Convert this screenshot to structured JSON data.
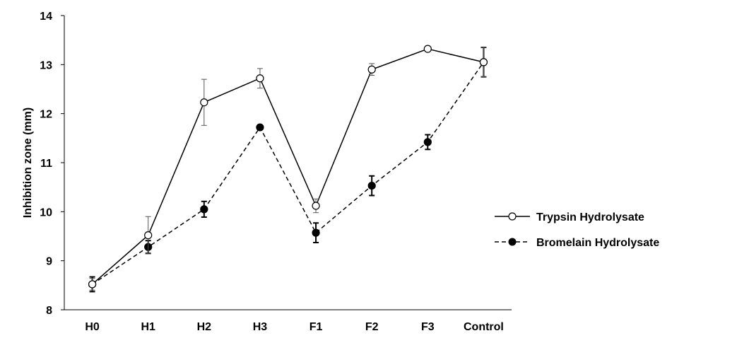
{
  "chart_data": {
    "type": "line",
    "title": "",
    "xlabel": "",
    "ylabel": "Inhibition zone (mm)",
    "categories": [
      "H0",
      "H1",
      "H2",
      "H3",
      "F1",
      "F2",
      "F3",
      "Control"
    ],
    "ylim": [
      8,
      14
    ],
    "yticks": [
      "8",
      "9",
      "10",
      "11",
      "12",
      "13",
      "14"
    ],
    "grid": false,
    "legend_position": "right",
    "series": [
      {
        "name": "Trypsin Hydrolysate",
        "values": [
          8.52,
          9.52,
          12.23,
          12.72,
          10.12,
          12.9,
          13.32,
          13.05
        ],
        "errors": [
          0.12,
          0.38,
          0.47,
          0.2,
          0.14,
          0.12,
          0.02,
          0.3
        ],
        "line_style": "solid",
        "marker": "open-circle",
        "color": "#000000"
      },
      {
        "name": "Bromelain Hydrolysate",
        "values": [
          8.52,
          9.28,
          10.05,
          11.72,
          9.57,
          10.53,
          11.42,
          13.05
        ],
        "errors": [
          0.15,
          0.13,
          0.16,
          0.03,
          0.2,
          0.2,
          0.15,
          0.3
        ],
        "line_style": "dashed",
        "marker": "filled-circle",
        "color": "#000000"
      }
    ]
  }
}
